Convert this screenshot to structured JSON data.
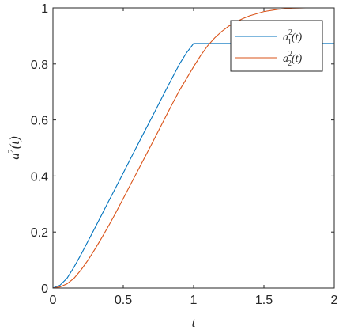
{
  "chart_data": {
    "type": "line",
    "xlabel": "t",
    "ylabel_base": "a",
    "ylabel_sup": "2",
    "ylabel_arg": "(t)",
    "xlim": [
      0,
      2
    ],
    "ylim": [
      0,
      1
    ],
    "xticks": [
      0,
      0.5,
      1,
      1.5,
      2
    ],
    "xtick_labels": [
      "0",
      "0.5",
      "1",
      "1.5",
      "2"
    ],
    "yticks": [
      0,
      0.2,
      0.4,
      0.6,
      0.8,
      1
    ],
    "ytick_labels": [
      "0",
      "0.2",
      "0.4",
      "0.6",
      "0.8",
      "1"
    ],
    "grid": false,
    "legend_position": "top-right",
    "series": [
      {
        "label_base": "a",
        "label_sup": "2",
        "label_sub": "1",
        "label_arg": "(t)",
        "color": "#0072bd",
        "x": [
          0,
          0.05,
          0.1,
          0.15,
          0.2,
          0.25,
          0.3,
          0.35,
          0.4,
          0.45,
          0.5,
          0.55,
          0.6,
          0.65,
          0.7,
          0.75,
          0.8,
          0.85,
          0.9,
          0.95,
          1.0,
          1.05,
          1.1,
          1.2,
          1.3,
          1.4,
          1.5,
          1.6,
          1.7,
          1.8,
          1.9,
          2.0
        ],
        "y": [
          0,
          0.01,
          0.035,
          0.075,
          0.12,
          0.168,
          0.216,
          0.265,
          0.314,
          0.362,
          0.411,
          0.46,
          0.509,
          0.558,
          0.606,
          0.655,
          0.704,
          0.752,
          0.8,
          0.84,
          0.873,
          0.873,
          0.873,
          0.873,
          0.873,
          0.873,
          0.873,
          0.873,
          0.873,
          0.873,
          0.873,
          0.873
        ]
      },
      {
        "label_base": "a",
        "label_sup": "2",
        "label_sub": "2",
        "label_arg": "(t)",
        "color": "#d95319",
        "x": [
          0,
          0.05,
          0.1,
          0.15,
          0.2,
          0.25,
          0.3,
          0.35,
          0.4,
          0.45,
          0.5,
          0.55,
          0.6,
          0.65,
          0.7,
          0.75,
          0.8,
          0.85,
          0.9,
          0.95,
          1.0,
          1.05,
          1.1,
          1.15,
          1.2,
          1.25,
          1.3,
          1.35,
          1.4,
          1.5,
          1.6,
          1.7,
          1.8,
          1.85,
          1.9,
          2.0
        ],
        "y": [
          0,
          0.004,
          0.015,
          0.035,
          0.065,
          0.1,
          0.14,
          0.182,
          0.226,
          0.272,
          0.32,
          0.368,
          0.416,
          0.464,
          0.512,
          0.561,
          0.61,
          0.659,
          0.706,
          0.748,
          0.79,
          0.83,
          0.865,
          0.893,
          0.916,
          0.935,
          0.95,
          0.962,
          0.972,
          0.987,
          0.995,
          0.999,
          1.0,
          1.0,
          1.0,
          1.0
        ]
      }
    ]
  }
}
